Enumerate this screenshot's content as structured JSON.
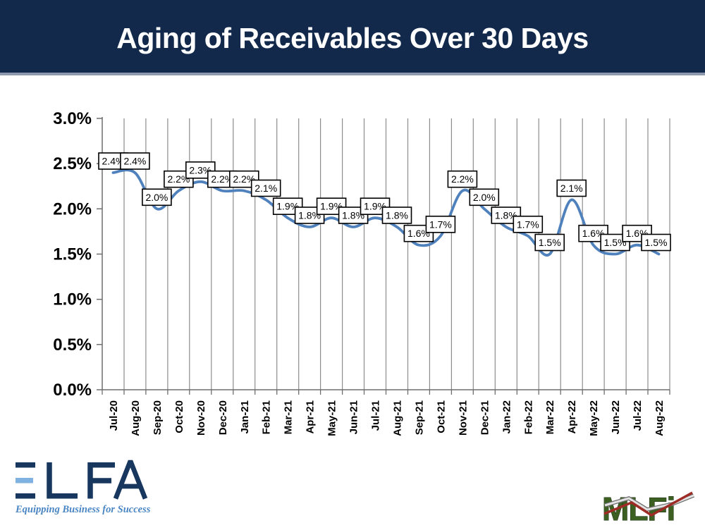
{
  "header": {
    "title": "Aging of Receivables Over 30 Days",
    "background_color": "#12294b",
    "text_color": "#ffffff",
    "bottom_strip_color": "#8e99ad"
  },
  "chart_data": {
    "type": "line",
    "title": "Aging of Receivables Over 30 Days",
    "x": [
      "Jul-20",
      "Aug-20",
      "Sep-20",
      "Oct-20",
      "Nov-20",
      "Dec-20",
      "Jan-21",
      "Feb-21",
      "Mar-21",
      "Apr-21",
      "May-21",
      "Jun-21",
      "Jul-21",
      "Aug-21",
      "Sep-21",
      "Oct-21",
      "Nov-21",
      "Dec-21",
      "Jan-22",
      "Feb-22",
      "Mar-22",
      "Apr-22",
      "May-22",
      "Jun-22",
      "Jul-22",
      "Aug-22"
    ],
    "values": [
      2.4,
      2.4,
      2.0,
      2.2,
      2.3,
      2.2,
      2.2,
      2.1,
      1.9,
      1.8,
      1.9,
      1.8,
      1.9,
      1.8,
      1.6,
      1.7,
      2.2,
      2.0,
      1.8,
      1.7,
      1.5,
      2.1,
      1.6,
      1.5,
      1.6,
      1.5
    ],
    "labels": [
      "2.4%",
      "2.4%",
      "2.0%",
      "2.2%",
      "2.3%",
      "2.2%",
      "2.2%",
      "2.1%",
      "1.9%",
      "1.8%",
      "1.9%",
      "1.8%",
      "1.9%",
      "1.8%",
      "1.6%",
      "1.7%",
      "2.2%",
      "2.0%",
      "1.8%",
      "1.7%",
      "1.5%",
      "2.1%",
      "1.6%",
      "1.5%",
      "1.6%",
      "1.5%"
    ],
    "y_ticks": [
      "3.0%",
      "2.5%",
      "2.0%",
      "1.5%",
      "1.0%",
      "0.5%",
      "0.0%"
    ],
    "ylim": [
      0,
      3
    ],
    "xlabel": "",
    "ylabel": "",
    "legend": "none",
    "grid": "vertical-only",
    "smooth": true,
    "data_labels_boxed": true,
    "line_color": "#4f81bd",
    "gridline_color": "#8c8c8c",
    "axis_color": "#6e6e6e",
    "label_text_color": "#000000"
  },
  "logos": {
    "elfa": {
      "name": "ELFA",
      "tagline": "Equipping Business for Success",
      "navy": "#17375e",
      "light_blue": "#7fb2e0",
      "tagline_color": "#4a86c4"
    },
    "mlfi": {
      "name": "MLFi",
      "green": "#3c6022",
      "red_line": "#9e2b25",
      "gray_line": "#e2e2e2",
      "gray_line_edge": "#6a6a6a"
    }
  }
}
